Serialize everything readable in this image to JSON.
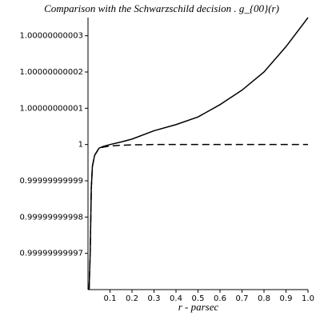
{
  "chart_data": {
    "type": "line",
    "title": "Comparison with the Schwarzschild decision . g_{00}(r)",
    "xlabel": "r - parsec",
    "x": [
      0.005,
      0.01,
      0.015,
      0.02,
      0.03,
      0.05,
      0.07,
      0.1,
      0.15,
      0.2,
      0.3,
      0.4,
      0.5,
      0.6,
      0.7,
      0.8,
      0.9,
      1.0
    ],
    "series": [
      {
        "color": "#000000",
        "line_style": "solid",
        "values": [
          0.99999999996,
          0.99999999997,
          0.999999999988,
          0.999999999994,
          0.999999999997,
          0.999999999999,
          0.9999999999995,
          1,
          1.0000000000007,
          1.0000000000015,
          1.0000000000038,
          1.0000000000055,
          1.0000000000076,
          1.000000000011,
          1.000000000015,
          1.00000000002,
          1.000000000027,
          1.000000000035
        ]
      },
      {
        "color": "#000000",
        "line_style": "dashed",
        "values": [
          0.99999999996,
          0.99999999997,
          0.999999999988,
          0.999999999994,
          0.999999999997,
          0.999999999999,
          0.9999999999993,
          0.9999999999996,
          0.9999999999998,
          0.9999999999999,
          1,
          1,
          1,
          1,
          1,
          1,
          1,
          1
        ]
      }
    ],
    "xlim": [
      0,
      1
    ],
    "xticks": [
      0.1,
      0.2,
      0.3,
      0.4,
      0.5,
      0.6,
      0.7,
      0.8,
      0.9,
      {
        "value": 1,
        "label": "1.0"
      }
    ],
    "ylim": [
      0.99999999996,
      1.000000000035
    ],
    "yticks": [
      0.99999999997,
      0.99999999998,
      0.99999999999,
      1,
      1.00000000001,
      1.00000000002,
      1.00000000003
    ],
    "grid": false
  }
}
